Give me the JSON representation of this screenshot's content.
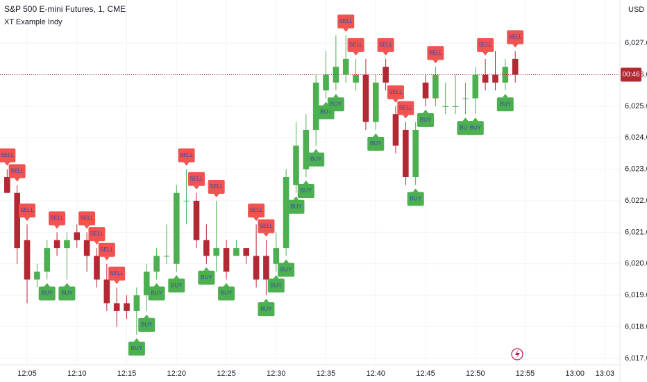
{
  "chart_data": {
    "type": "candlestick",
    "title": "S&P 500 E-mini Futures, 1, CME",
    "indicator": "XT Example Indy",
    "currency": "USD",
    "countdown": "00:46",
    "x": [
      723,
      724,
      725,
      726,
      727,
      728,
      729,
      730,
      731,
      732,
      733,
      734,
      735,
      736,
      737,
      738,
      739,
      740,
      741,
      742,
      743,
      744,
      745,
      746,
      747,
      748,
      749,
      750,
      751,
      752,
      753,
      754,
      755,
      756,
      757,
      758,
      759,
      760,
      761,
      762,
      763,
      764,
      765,
      766,
      767,
      768,
      769,
      770,
      771,
      772,
      773,
      774
    ],
    "open": [
      6022.75,
      6022.25,
      6020.75,
      6019.5,
      6019.75,
      6020.75,
      6020.5,
      6021.0,
      6020.75,
      6020.25,
      6019.5,
      6018.75,
      6018.75,
      6018.5,
      6019.0,
      6019.75,
      6020.25,
      6020.0,
      6022.0,
      6022.0,
      6020.75,
      6020.25,
      6020.5,
      6020.25,
      6020.5,
      6020.25,
      6020.25,
      6020.0,
      6020.5,
      6022.5,
      6023.0,
      6024.25,
      6025.5,
      6025.75,
      6026.0,
      6025.75,
      6026.0,
      6024.5,
      6026.25,
      6024.75,
      6024.25,
      6022.75,
      6025.75,
      6025.25,
      6025.0,
      6025.0,
      6025.25,
      6025.25,
      6026.0,
      6026.0,
      6025.75,
      6026.5
    ],
    "high": [
      6023.0,
      6022.5,
      6021.25,
      6020.0,
      6020.75,
      6021.0,
      6021.0,
      6021.25,
      6021.0,
      6020.5,
      6020.0,
      6019.25,
      6019.0,
      6019.25,
      6020.0,
      6020.5,
      6021.25,
      6022.5,
      6023.0,
      6022.25,
      6021.25,
      6022.0,
      6020.75,
      6020.75,
      6020.5,
      6021.25,
      6020.75,
      6021.0,
      6023.0,
      6024.5,
      6024.75,
      6026.0,
      6026.75,
      6027.25,
      6027.25,
      6026.5,
      6026.5,
      6026.0,
      6026.5,
      6025.0,
      6024.5,
      6024.5,
      6026.0,
      6026.25,
      6025.75,
      6026.0,
      6025.75,
      6026.25,
      6026.5,
      6026.75,
      6026.5,
      6026.75
    ],
    "low": [
      6022.25,
      6020.0,
      6018.75,
      6019.25,
      6019.5,
      6020.25,
      6019.5,
      6020.5,
      6019.75,
      6019.25,
      6018.5,
      6018.0,
      6018.25,
      6017.75,
      6018.5,
      6019.5,
      6020.0,
      6019.75,
      6021.25,
      6020.5,
      6020.0,
      6019.75,
      6019.5,
      6020.25,
      6020.0,
      6019.25,
      6019.0,
      6019.75,
      6020.25,
      6022.25,
      6022.75,
      6023.75,
      6025.25,
      6025.5,
      6025.75,
      6025.5,
      6024.25,
      6024.25,
      6025.5,
      6023.5,
      6022.5,
      6022.5,
      6025.0,
      6025.0,
      6024.75,
      6024.75,
      6024.75,
      6024.75,
      6025.5,
      6025.5,
      6025.5,
      6025.75
    ],
    "close": [
      6022.25,
      6020.5,
      6019.5,
      6019.75,
      6020.5,
      6020.5,
      6020.75,
      6020.75,
      6020.25,
      6019.5,
      6018.75,
      6018.5,
      6018.5,
      6019.0,
      6019.75,
      6020.25,
      6020.25,
      6022.25,
      6022.0,
      6020.75,
      6020.25,
      6020.5,
      6019.75,
      6020.5,
      6020.25,
      6019.5,
      6019.5,
      6020.5,
      6022.75,
      6023.75,
      6024.25,
      6025.75,
      6026.0,
      6026.25,
      6026.5,
      6026.0,
      6024.5,
      6025.75,
      6025.75,
      6023.75,
      6022.75,
      6024.25,
      6025.25,
      6026.0,
      6025.0,
      6025.0,
      6025.25,
      6026.0,
      6025.75,
      6025.75,
      6026.25,
      6026.0
    ],
    "up_color": "#4caf50",
    "down_color": "#b22833",
    "signals": {
      "sell_label": "SELL",
      "buy_label": "BUY",
      "sell_color": "#f05350",
      "buy_color": "#4caf50",
      "sell": [
        723,
        724,
        725,
        728,
        731,
        732,
        733,
        734,
        741,
        742,
        744,
        748,
        749,
        757,
        758,
        761,
        762,
        763,
        766,
        771,
        774
      ],
      "buy": [
        727,
        729,
        736,
        737,
        738,
        740,
        743,
        745,
        749,
        750,
        751,
        752,
        753,
        754,
        755,
        756,
        760,
        764,
        765,
        769,
        770,
        773
      ]
    },
    "xlim": [
      722.28,
      784.3
    ],
    "xticks": [
      {
        "value": 725,
        "label": "12:05"
      },
      {
        "value": 730,
        "label": "12:10"
      },
      {
        "value": 735,
        "label": "12:15"
      },
      {
        "value": 740,
        "label": "12:20"
      },
      {
        "value": 745,
        "label": "12:25"
      },
      {
        "value": 750,
        "label": "12:30"
      },
      {
        "value": 755,
        "label": "12:35"
      },
      {
        "value": 760,
        "label": "12:40"
      },
      {
        "value": 765,
        "label": "12:45"
      },
      {
        "value": 770,
        "label": "12:50"
      },
      {
        "value": 775,
        "label": "12:55"
      },
      {
        "value": 780,
        "label": "13:00"
      },
      {
        "value": 783,
        "label": "13:03"
      }
    ],
    "ylim": [
      6016.8,
      6028.37
    ],
    "yticks": [
      {
        "value": 6017,
        "label": "6,017.00"
      },
      {
        "value": 6018,
        "label": "6,018.00"
      },
      {
        "value": 6019,
        "label": "6,019.00"
      },
      {
        "value": 6020,
        "label": "6,020.00"
      },
      {
        "value": 6021,
        "label": "6,021.00"
      },
      {
        "value": 6022,
        "label": "6,022.00"
      },
      {
        "value": 6023,
        "label": "6,023.00"
      },
      {
        "value": 6024,
        "label": "6,024.00"
      },
      {
        "value": 6025,
        "label": "6,025.00"
      },
      {
        "value": 6026,
        "label": "6,026.00"
      },
      {
        "value": 6027,
        "label": "6,027.00"
      }
    ],
    "grid": true
  }
}
